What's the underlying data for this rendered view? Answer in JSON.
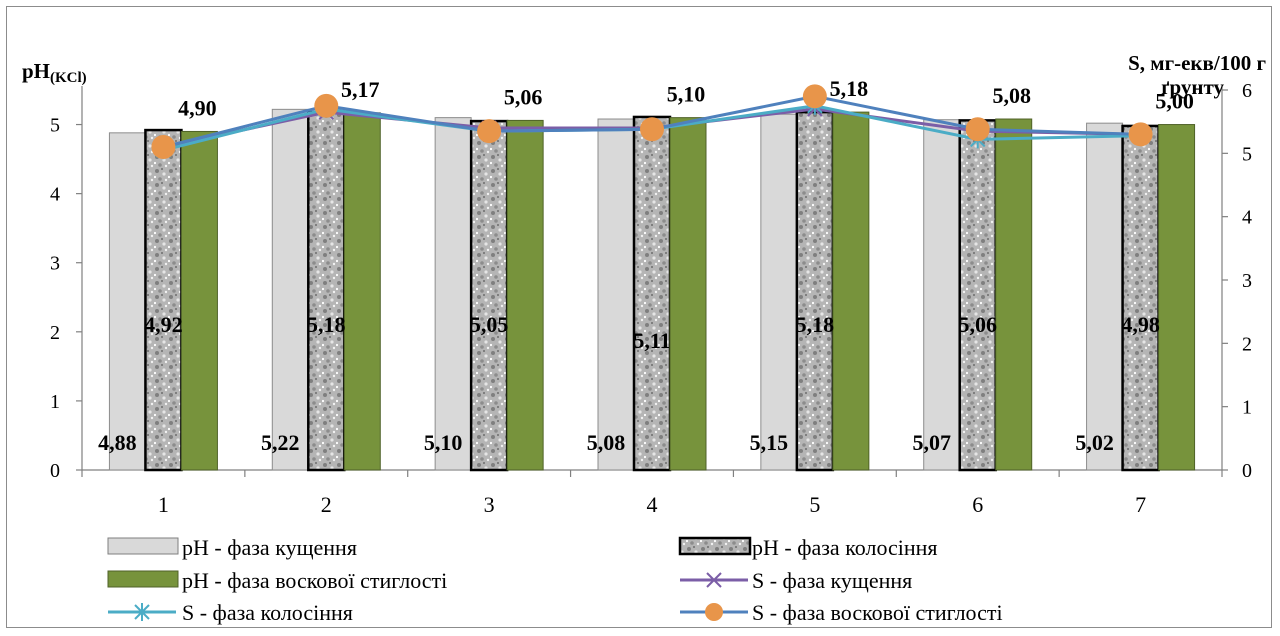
{
  "chart_data": {
    "type": "bar",
    "categories": [
      "1",
      "2",
      "3",
      "4",
      "5",
      "6",
      "7"
    ],
    "y_left": {
      "label_main": "pH",
      "label_sub": "(KCl)",
      "ylim": [
        0,
        5.5
      ],
      "ticks": [
        "0",
        "1",
        "2",
        "3",
        "4",
        "5"
      ]
    },
    "y_right": {
      "label_line1": "S, мг-екв/100 г",
      "label_line2": "ґрунту",
      "ylim": [
        0,
        6
      ],
      "ticks": [
        "0",
        "1",
        "2",
        "3",
        "4",
        "5",
        "6"
      ]
    },
    "bar_series": [
      {
        "name": "pH - фаза кущення",
        "color": "#d9d9d9",
        "values": [
          4.88,
          5.22,
          5.1,
          5.08,
          5.15,
          5.07,
          5.02
        ],
        "labels": [
          "4,88",
          "5,22",
          "5,10",
          "5,08",
          "5,15",
          "5,07",
          "5,02"
        ]
      },
      {
        "name": "pH - фаза колосіння",
        "color": "#a6a6a6",
        "values": [
          4.92,
          5.18,
          5.05,
          5.11,
          5.18,
          5.06,
          4.98
        ],
        "labels": [
          "4,92",
          "5,18",
          "5,05",
          "5,11",
          "5,18",
          "5,06",
          "4,98"
        ]
      },
      {
        "name": "pH - фаза воскової стиглості",
        "color": "#77933c",
        "values": [
          4.9,
          5.17,
          5.06,
          5.1,
          5.18,
          5.08,
          5.0
        ],
        "labels": [
          "4,90",
          "5,17",
          "5,06",
          "5,10",
          "5,18",
          "5,08",
          "5,00"
        ]
      }
    ],
    "line_series": [
      {
        "name": "S - фаза кущення",
        "color": "#7b5ea7",
        "marker": "x",
        "values": [
          5.1,
          5.65,
          5.4,
          5.4,
          5.7,
          5.35,
          5.3
        ]
      },
      {
        "name": "S - фаза колосіння",
        "color": "#4bacc6",
        "marker": "star",
        "values": [
          5.05,
          5.7,
          5.35,
          5.38,
          5.75,
          5.22,
          5.28
        ]
      },
      {
        "name": "S - фаза воскової стиглості",
        "color": "#4f81bd",
        "marker": "circle",
        "marker_color": "#e8954a",
        "values": [
          5.1,
          5.75,
          5.35,
          5.38,
          5.9,
          5.38,
          5.3
        ]
      }
    ],
    "grid": false
  }
}
